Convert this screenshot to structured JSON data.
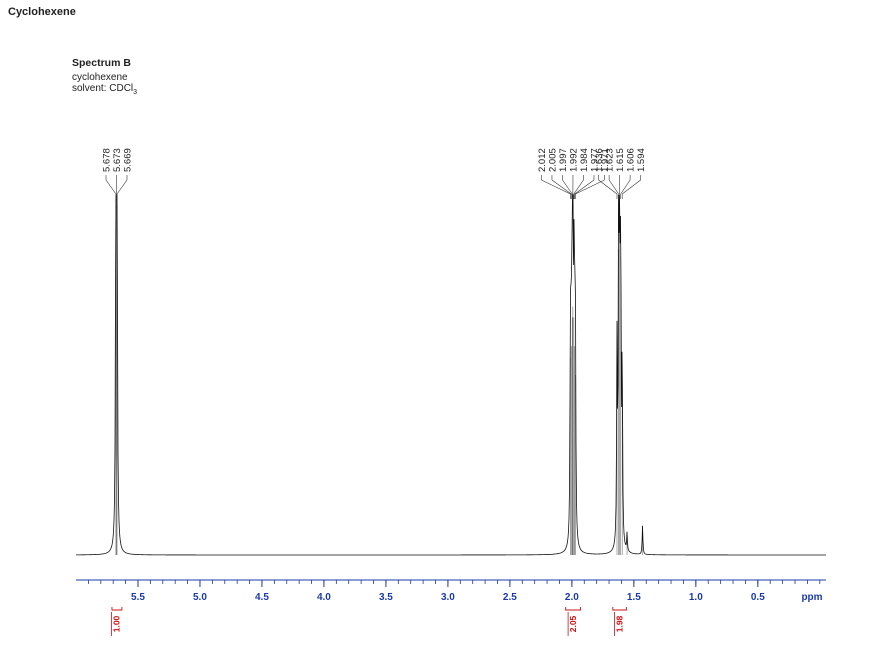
{
  "page": {
    "title": "Cyclohexene"
  },
  "spectrum": {
    "title": "Spectrum B",
    "compound": "cyclohexene",
    "solvent_prefix": "solvent: ",
    "solvent_main": "CDCl",
    "solvent_sub": "3"
  },
  "colors": {
    "axis": "#1a3aa8",
    "integral": "#cc1111",
    "trace": "#111111"
  },
  "chart_data": {
    "type": "line",
    "xlabel": "ppm",
    "x_reversed": true,
    "xlim": [
      6.0,
      -0.05
    ],
    "ylim": [
      0,
      1.0
    ],
    "grid": false,
    "x_ticks": [
      {
        "value": 5.5,
        "label": "5.5"
      },
      {
        "value": 5.0,
        "label": "5.0"
      },
      {
        "value": 4.5,
        "label": "4.5"
      },
      {
        "value": 4.0,
        "label": "4.0"
      },
      {
        "value": 3.5,
        "label": "3.5"
      },
      {
        "value": 3.0,
        "label": "3.0"
      },
      {
        "value": 2.5,
        "label": "2.5"
      },
      {
        "value": 2.0,
        "label": "2.0"
      },
      {
        "value": 1.5,
        "label": "1.5"
      },
      {
        "value": 1.0,
        "label": "1.0"
      },
      {
        "value": 0.5,
        "label": "0.5"
      }
    ],
    "peaks": [
      {
        "ppm": 5.678,
        "height": 0.99
      },
      {
        "ppm": 5.673,
        "height": 1.0
      },
      {
        "ppm": 5.669,
        "height": 0.97
      },
      {
        "ppm": 2.012,
        "height": 0.55
      },
      {
        "ppm": 2.005,
        "height": 0.58
      },
      {
        "ppm": 1.997,
        "height": 0.66
      },
      {
        "ppm": 1.992,
        "height": 0.69
      },
      {
        "ppm": 1.984,
        "height": 0.66
      },
      {
        "ppm": 1.977,
        "height": 0.58
      },
      {
        "ppm": 1.971,
        "height": 0.5
      },
      {
        "ppm": 1.636,
        "height": 0.55
      },
      {
        "ppm": 1.623,
        "height": 0.85
      },
      {
        "ppm": 1.615,
        "height": 1.0
      },
      {
        "ppm": 1.606,
        "height": 0.83
      },
      {
        "ppm": 1.594,
        "height": 0.52
      },
      {
        "ppm": 1.555,
        "height": 0.05
      },
      {
        "ppm": 1.43,
        "height": 0.08
      }
    ],
    "peak_label_groups": [
      {
        "labels": [
          "5.678",
          "5.673",
          "5.669"
        ],
        "peaks": [
          5.678,
          5.673,
          5.669
        ]
      },
      {
        "labels": [
          "2.012",
          "2.005",
          "1.997",
          "1.992",
          "1.984",
          "1.977",
          "1.971"
        ],
        "peaks": [
          2.012,
          2.005,
          1.997,
          1.992,
          1.984,
          1.977,
          1.971
        ]
      },
      {
        "labels": [
          "1.636",
          "1.623",
          "1.615",
          "1.606",
          "1.594"
        ],
        "peaks": [
          1.636,
          1.623,
          1.615,
          1.606,
          1.594
        ]
      }
    ],
    "integrals": [
      {
        "center": 5.673,
        "from": 5.71,
        "to": 5.63,
        "label": "1.00"
      },
      {
        "center": 1.99,
        "from": 2.05,
        "to": 1.93,
        "label": "2.05"
      },
      {
        "center": 1.615,
        "from": 1.67,
        "to": 1.56,
        "label": "1.98"
      }
    ]
  }
}
